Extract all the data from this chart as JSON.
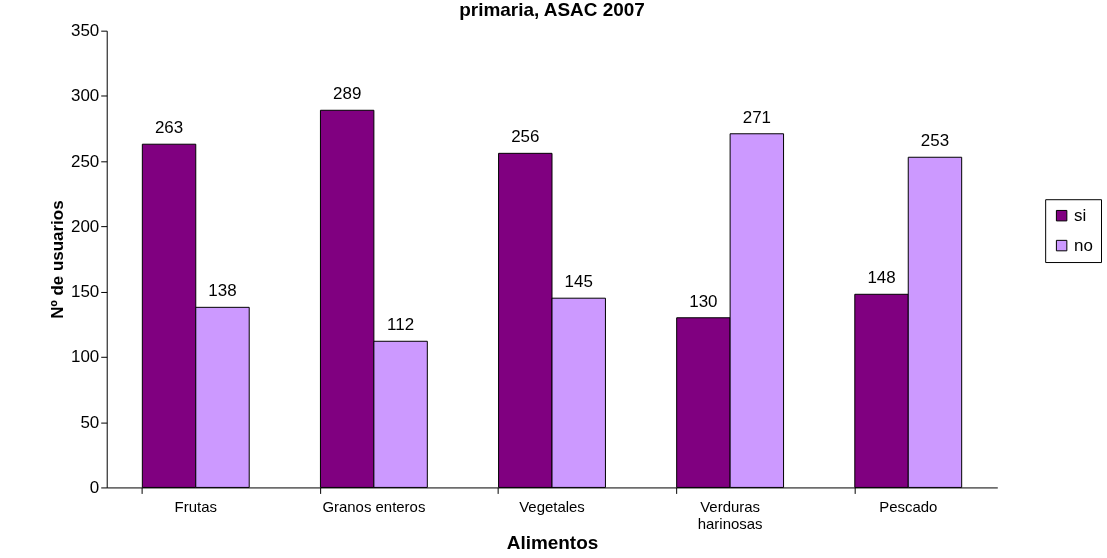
{
  "chart_data": {
    "type": "bar",
    "title": "primaria, ASAC 2007",
    "xlabel": "Alimentos",
    "ylabel": "Nº de usuarios",
    "categories": [
      "Frutas",
      "Granos enteros",
      "Vegetales",
      "Verduras harinosas",
      "Pescado"
    ],
    "series": [
      {
        "name": "si",
        "color": "#800080",
        "values": [
          263,
          289,
          256,
          130,
          148
        ]
      },
      {
        "name": "no",
        "color": "#cc99ff",
        "values": [
          138,
          112,
          145,
          271,
          253
        ]
      }
    ],
    "ylim": [
      0,
      350
    ],
    "yticks": [
      0,
      50,
      100,
      150,
      200,
      250,
      300,
      350
    ],
    "grid": false,
    "legend": "right",
    "data_labels": true
  }
}
